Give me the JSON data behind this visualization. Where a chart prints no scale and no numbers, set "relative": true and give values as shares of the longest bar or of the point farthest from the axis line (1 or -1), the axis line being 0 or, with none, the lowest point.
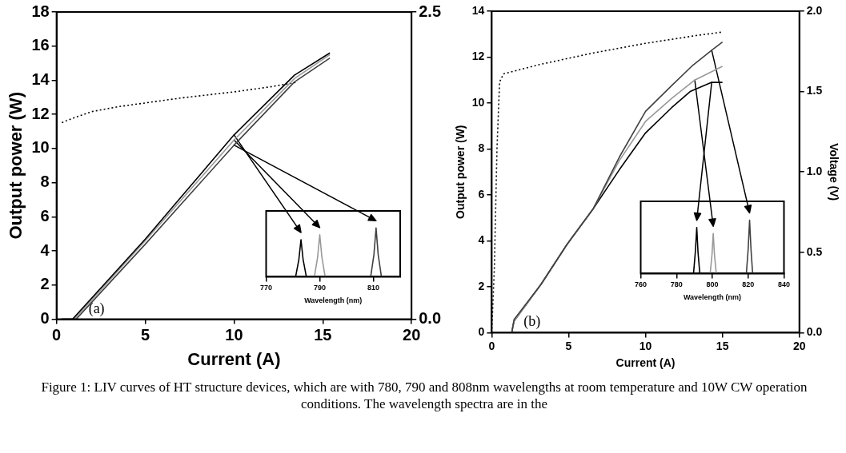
{
  "chart_data": [
    {
      "type": "line",
      "xlabel": "Current (A)",
      "ylabel": "Output power (W)",
      "xlim": [
        0,
        20
      ],
      "xticks": [
        0,
        5,
        10,
        15,
        20
      ],
      "ylim": [
        0,
        18
      ],
      "yticks": [
        0,
        2,
        4,
        6,
        8,
        10,
        12,
        14,
        16,
        18
      ],
      "y2lim": [
        0,
        2.5
      ],
      "y2ticks": [
        {
          "value": 0,
          "label": "0.0"
        },
        {
          "value": 2.5,
          "label": "2.5"
        }
      ],
      "grid": false,
      "legend": false,
      "marker": "none",
      "annotations": [
        "(a)",
        "Figure 1: LIV curves of HT structure devices, which are with 780, 790 and 808nm wavelengths at room temperature and 10W CW operation conditions. The wavelength spectra are in the"
      ],
      "series": [
        {
          "color": "#000000",
          "x": [
            0.3,
            0.9,
            5,
            10,
            13.4,
            15.4
          ],
          "values": [
            0,
            0,
            4.7,
            10.8,
            14.3,
            15.6
          ]
        },
        {
          "color": "#999999",
          "x": [
            0.3,
            1.0,
            5,
            10,
            13.4,
            15.4
          ],
          "values": [
            0,
            0,
            4.6,
            10.5,
            14.1,
            15.5
          ]
        },
        {
          "color": "#404040",
          "x": [
            0.3,
            1.1,
            5,
            10,
            13.4,
            15.4
          ],
          "values": [
            0,
            0,
            4.4,
            10.2,
            13.9,
            15.3
          ]
        },
        {
          "color": "#000000",
          "axis": "y2",
          "line_style": "dotted",
          "x": [
            0.3,
            1,
            2,
            3.5,
            5,
            7,
            10,
            12,
            13.6
          ],
          "values": [
            1.6,
            1.64,
            1.69,
            1.73,
            1.76,
            1.8,
            1.85,
            1.89,
            1.93
          ]
        }
      ]
    },
    {
      "type": "line",
      "relative": true,
      "xlabel": "Wavelength (nm)",
      "xlim": [
        770,
        820
      ],
      "xticks": [
        770,
        790,
        810
      ],
      "tick_labels": "x",
      "grid": false,
      "legend": false,
      "marker": "none",
      "series": [
        {
          "color": "#000000",
          "x": [
            781,
            782.2,
            783,
            783.8,
            785
          ],
          "values": [
            0,
            0.35,
            0.76,
            0.35,
            0
          ]
        },
        {
          "color": "#999999",
          "x": [
            788,
            789.2,
            790,
            790.8,
            792
          ],
          "values": [
            0,
            0.4,
            0.86,
            0.4,
            0
          ]
        },
        {
          "color": "#404040",
          "x": [
            809,
            810.2,
            811,
            811.8,
            813
          ],
          "values": [
            0,
            0.45,
            1,
            0.45,
            0
          ]
        }
      ]
    },
    {
      "type": "line",
      "xlabel": "Current (A)",
      "ylabel": "Output power (W)",
      "y2label": "Voltage (V)",
      "xlim": [
        0,
        20
      ],
      "xticks": [
        0,
        5,
        10,
        15,
        20
      ],
      "ylim": [
        0,
        14
      ],
      "yticks": [
        0,
        2,
        4,
        6,
        8,
        10,
        12,
        14
      ],
      "y2lim": [
        0,
        2
      ],
      "y2ticks": [
        {
          "value": 0,
          "label": "0.0"
        },
        {
          "value": 0.5,
          "label": "0.5"
        },
        {
          "value": 1,
          "label": "1.0"
        },
        {
          "value": 1.5,
          "label": "1.5"
        },
        {
          "value": 2,
          "label": "2.0"
        }
      ],
      "grid": false,
      "legend": false,
      "marker": "none",
      "annotations": [
        "(b)"
      ],
      "series": [
        {
          "color": "#404040",
          "x": [
            0,
            1.1,
            1.3,
            1.45,
            3.2,
            4.9,
            6.6,
            8.3,
            10,
            11.7,
            13,
            14.3,
            15
          ],
          "values": [
            0,
            0,
            0,
            0.57,
            2.1,
            3.85,
            5.4,
            7.65,
            9.64,
            10.76,
            11.6,
            12.3,
            12.66
          ]
        },
        {
          "color": "#999999",
          "x": [
            0,
            1.1,
            1.3,
            1.45,
            3.2,
            4.9,
            6.6,
            8.3,
            10,
            11.7,
            13.2,
            15
          ],
          "values": [
            0,
            0,
            0,
            0.5,
            2.1,
            3.85,
            5.4,
            7.5,
            9.2,
            10.2,
            11,
            11.6
          ]
        },
        {
          "color": "#000000",
          "x": [
            0,
            1.1,
            1.3,
            1.45,
            3.2,
            4.9,
            6.6,
            8.3,
            10,
            11.7,
            12.9,
            14.3,
            15
          ],
          "values": [
            0,
            0,
            0,
            0.5,
            2.1,
            3.85,
            5.4,
            7.1,
            8.7,
            9.8,
            10.5,
            10.9,
            10.9
          ]
        },
        {
          "color": "#000000",
          "axis": "y2",
          "line_style": "dotted",
          "x": [
            0,
            0.17,
            0.34,
            0.51,
            0.77,
            3.2,
            6.6,
            10,
            13.4,
            15
          ],
          "values": [
            0,
            0.4,
            1.14,
            1.56,
            1.61,
            1.67,
            1.74,
            1.8,
            1.85,
            1.87
          ]
        }
      ]
    },
    {
      "type": "line",
      "relative": true,
      "xlabel": "Wavelength (nm)",
      "xlim": [
        760,
        840
      ],
      "xticks": [
        760,
        780,
        800,
        820,
        840
      ],
      "tick_labels": "x",
      "grid": false,
      "legend": false,
      "marker": "none",
      "series": [
        {
          "color": "#000000",
          "x": [
            789.5,
            790.5,
            791.3,
            792,
            793
          ],
          "values": [
            0,
            0.4,
            0.86,
            0.4,
            0
          ]
        },
        {
          "color": "#999999",
          "x": [
            798.8,
            799.8,
            800.5,
            801.2,
            802.2
          ],
          "values": [
            0,
            0.35,
            0.75,
            0.35,
            0
          ]
        },
        {
          "color": "#404040",
          "x": [
            819,
            820,
            820.8,
            821.6,
            822.5
          ],
          "values": [
            0,
            0.45,
            1,
            0.45,
            0
          ]
        }
      ]
    }
  ]
}
